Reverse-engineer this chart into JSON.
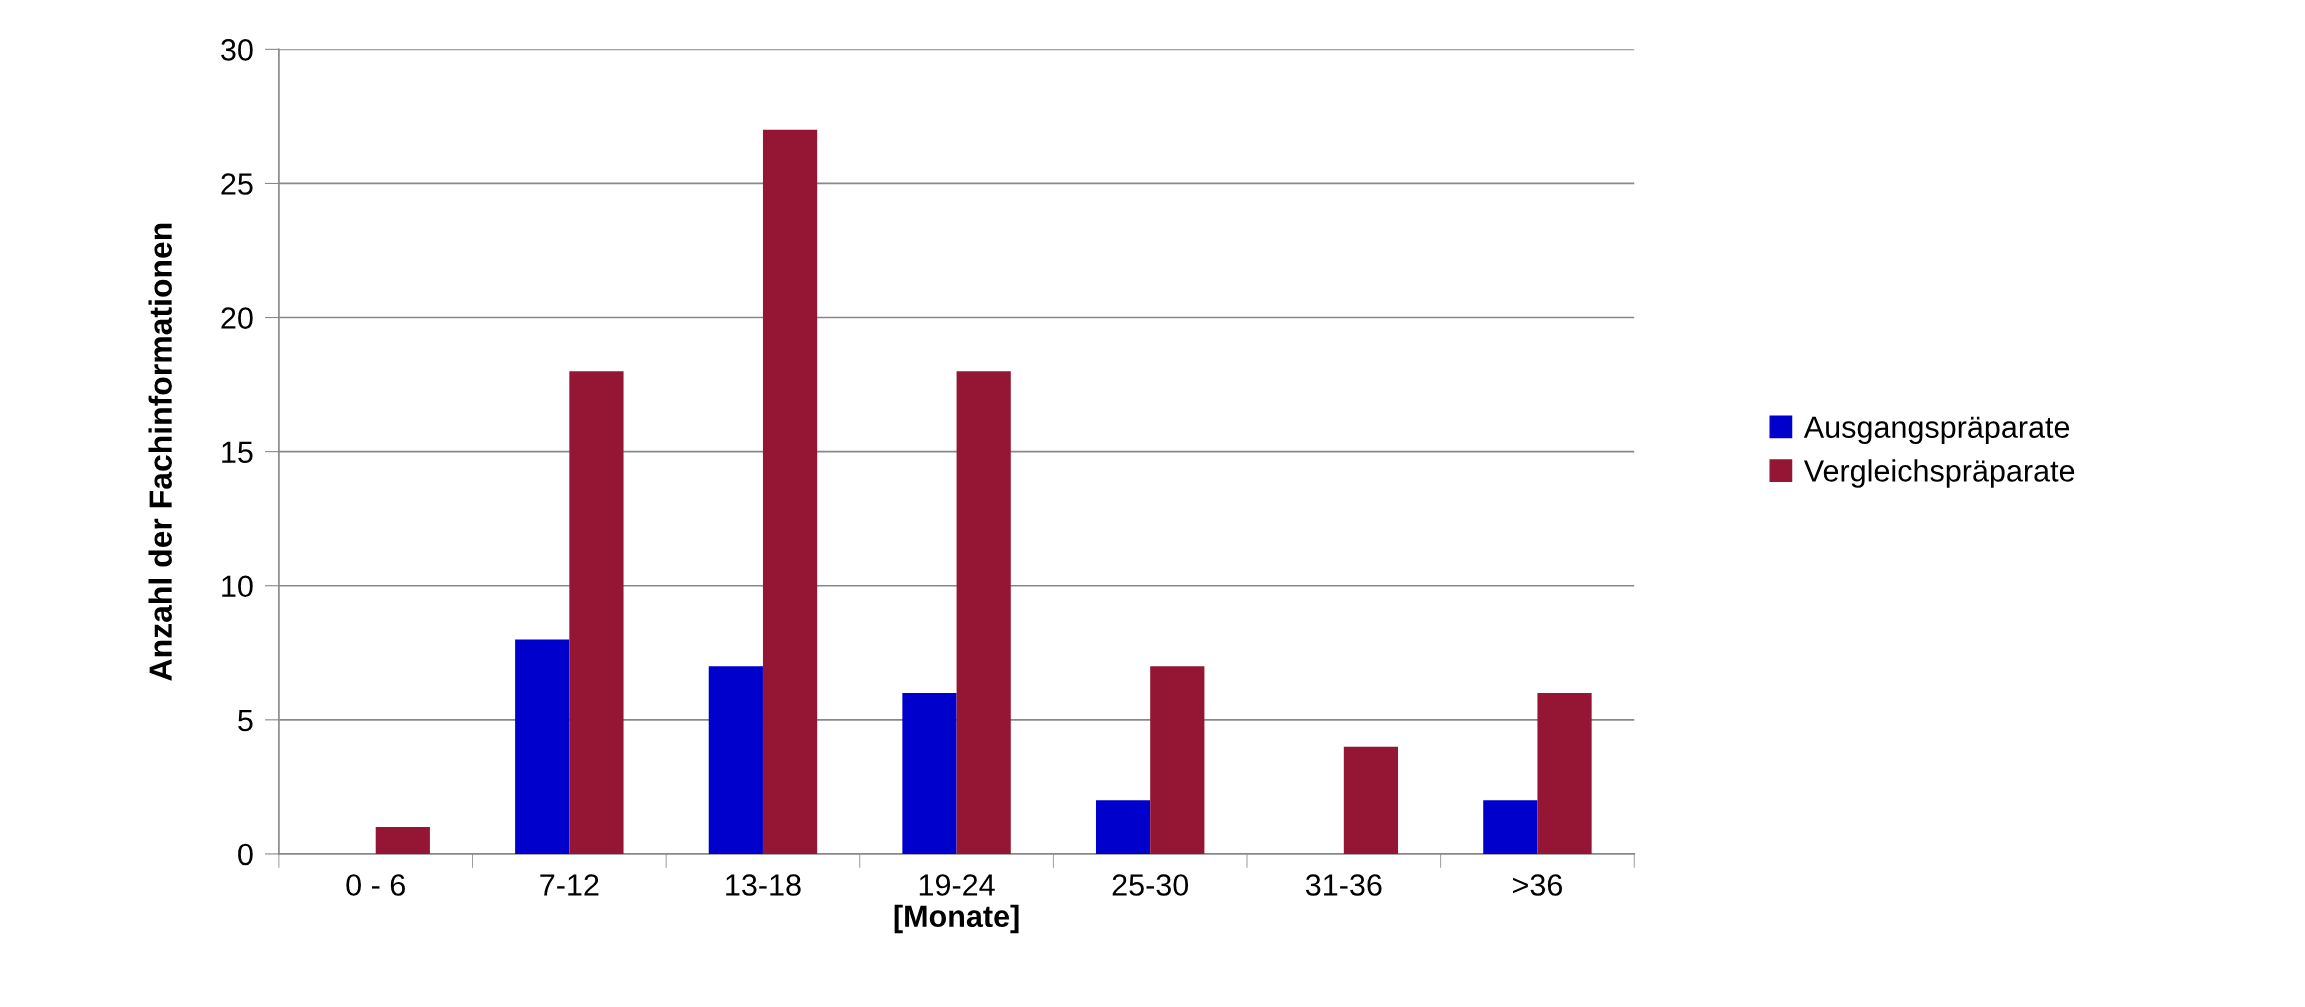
{
  "chart_data": {
    "type": "bar",
    "xlabel": "[Monate]",
    "ylabel": "Anzahl der Fachinformationen",
    "categories": [
      "0 - 6",
      "7-12",
      "13-18",
      "19-24",
      "25-30",
      "31-36",
      ">36"
    ],
    "series": [
      {
        "name": "Ausgangspräparate",
        "color": "#0000cc",
        "values": [
          0,
          8,
          7,
          6,
          2,
          0,
          2
        ]
      },
      {
        "name": "Vergleichspräparate",
        "color": "#941634",
        "values": [
          1,
          18,
          27,
          18,
          7,
          4,
          6
        ]
      }
    ],
    "ylim": [
      0,
      30
    ],
    "yticks": [
      0,
      5,
      10,
      15,
      20,
      25,
      30
    ],
    "grid": "y",
    "legend": "right"
  }
}
